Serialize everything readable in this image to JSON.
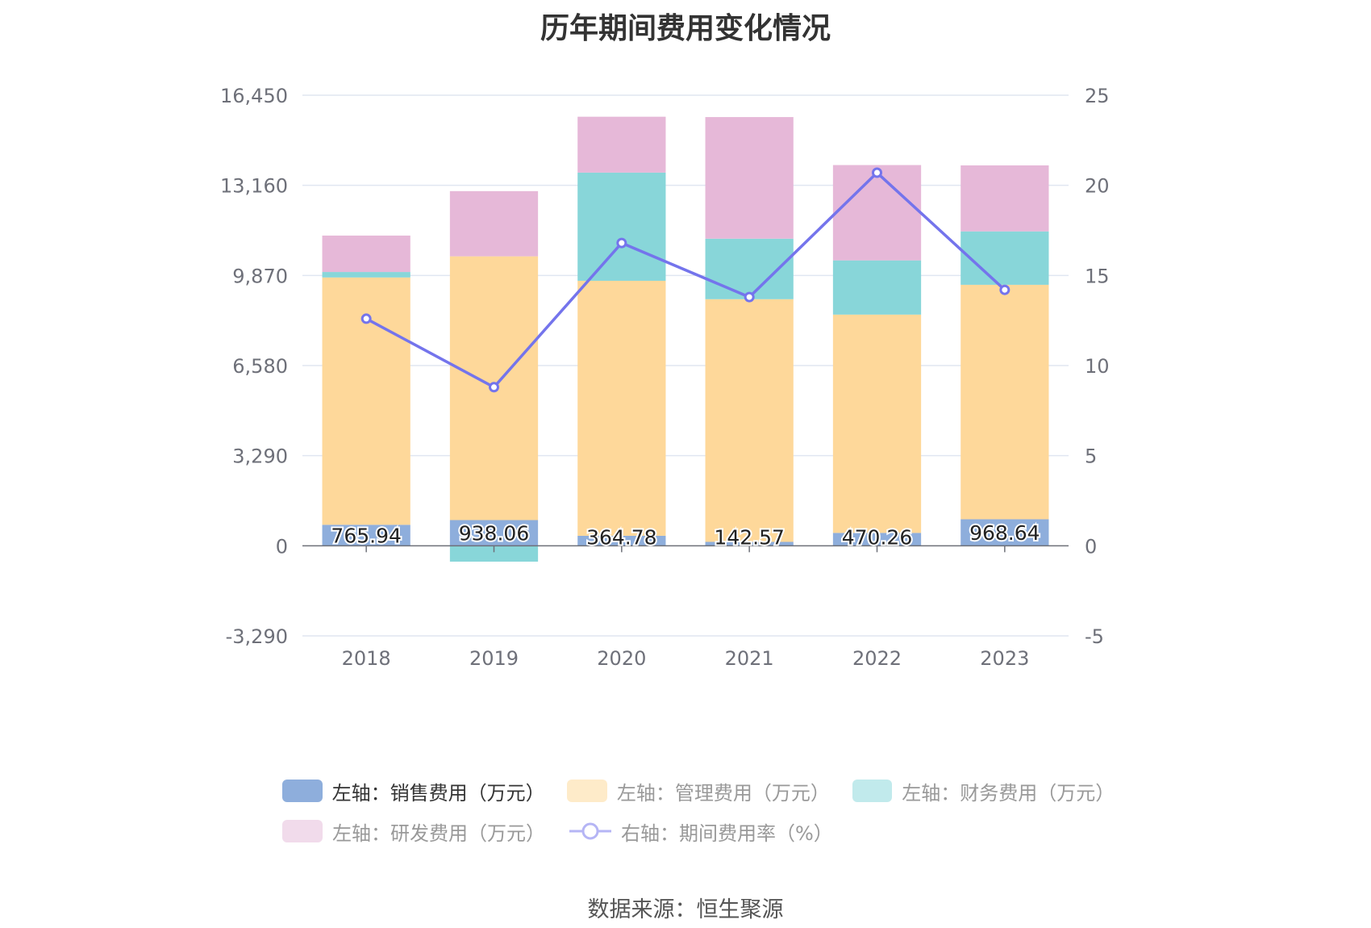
{
  "title": "历年期间费用变化情况",
  "source": "数据来源：恒生聚源",
  "chart_data": {
    "type": "bar",
    "stacked": true,
    "categories": [
      "2018",
      "2019",
      "2020",
      "2021",
      "2022",
      "2023"
    ],
    "left_axis": {
      "ticks": [
        "16,450",
        "13,160",
        "9,870",
        "6,580",
        "3,290",
        "0",
        "-3,290"
      ],
      "ylim": [
        -3290,
        16450
      ]
    },
    "right_axis": {
      "ticks": [
        "25",
        "20",
        "15",
        "10",
        "5",
        "0",
        "-5"
      ],
      "ylim": [
        -5,
        25
      ]
    },
    "series": [
      {
        "name": "左轴：销售费用（万元）",
        "axis": "left",
        "type": "bar",
        "color": "#8eaedc",
        "values": [
          765.94,
          938.06,
          364.78,
          142.57,
          470.26,
          968.64
        ],
        "labels": [
          "765.94",
          "938.06",
          "364.78",
          "142.57",
          "470.26",
          "968.64"
        ]
      },
      {
        "name": "左轴：管理费用（万元）",
        "axis": "left",
        "type": "bar",
        "color": "#fed89a",
        "values": [
          9030,
          9630,
          9310,
          8860,
          7970,
          8560
        ]
      },
      {
        "name": "左轴：财务费用（万元）",
        "axis": "left",
        "type": "bar",
        "color": "#88d6d9",
        "values": [
          200,
          -580,
          3950,
          2210,
          1980,
          1950
        ]
      },
      {
        "name": "左轴：研发费用（万元）",
        "axis": "left",
        "type": "bar",
        "color": "#e6b8d8",
        "values": [
          1330,
          2380,
          2040,
          4440,
          3480,
          2410
        ]
      },
      {
        "name": "右轴：期间费用率（%）",
        "axis": "right",
        "type": "line",
        "color": "#7474ec",
        "values": [
          12.6,
          8.8,
          16.8,
          13.8,
          20.7,
          14.2
        ]
      }
    ],
    "legend": [
      {
        "label": "左轴：销售费用（万元）",
        "color": "#8eaedc",
        "kind": "bar"
      },
      {
        "label": "左轴：管理费用（万元）",
        "color": "#feebc9",
        "kind": "bar"
      },
      {
        "label": "左轴：财务费用（万元）",
        "color": "#c1eaec",
        "kind": "bar"
      },
      {
        "label": "左轴：研发费用（万元）",
        "color": "#f1dbeb",
        "kind": "bar"
      },
      {
        "label": "右轴：期间费用率（%）",
        "color": "#b5b5f5",
        "kind": "line"
      }
    ],
    "legend_position": "bottom",
    "grid": true
  }
}
